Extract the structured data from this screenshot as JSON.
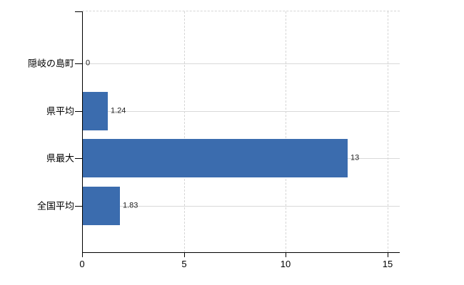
{
  "chart_data": {
    "type": "bar",
    "orientation": "horizontal",
    "title": "",
    "xlabel": "",
    "ylabel": "",
    "categories": [
      "隠岐の島町",
      "県平均",
      "県最大",
      "全国平均"
    ],
    "values": [
      0,
      1.24,
      13,
      1.83
    ],
    "value_labels": [
      "0",
      "1.24",
      "13",
      "1.83"
    ],
    "x_ticks": [
      0,
      5,
      10,
      15
    ],
    "x_tick_labels": [
      "0",
      "5",
      "10",
      "15"
    ],
    "xlim": [
      0,
      15.6
    ],
    "grid": true,
    "legend": "none",
    "bar_color": "#3b6cae",
    "axis_color": "#000000",
    "gridline_color": "#d9d9d9"
  }
}
